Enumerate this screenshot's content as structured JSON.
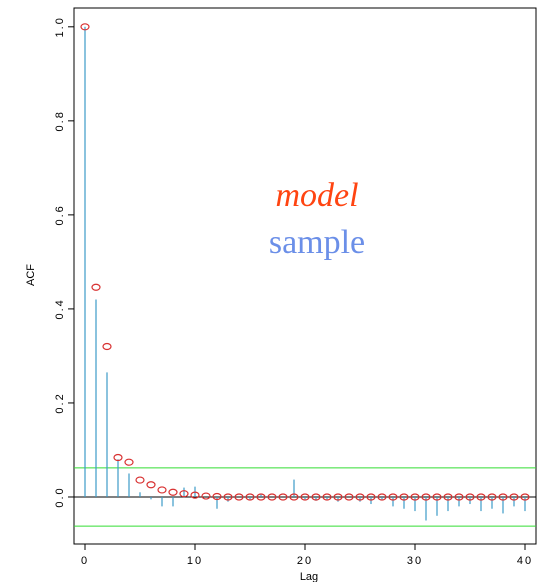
{
  "chart_data": {
    "type": "bar",
    "xlabel": "Lag",
    "ylabel": "ACF",
    "xlim": [
      -1,
      41
    ],
    "ylim": [
      -0.1,
      1.04
    ],
    "x_ticks": [
      0,
      10,
      20,
      30,
      40
    ],
    "x_tick_labels": [
      "0",
      "10",
      "20",
      "30",
      "40"
    ],
    "y_ticks": [
      0.0,
      0.2,
      0.4,
      0.6,
      0.8,
      1.0
    ],
    "y_tick_labels": [
      "0.0",
      "0.2",
      "0.4",
      "0.6",
      "0.8",
      "1.0"
    ],
    "confidence_bound": 0.062,
    "grid": false,
    "legend_placement": "center",
    "annotations": {
      "model": "model",
      "sample": "sample"
    },
    "colors": {
      "sample": "#3d9bc7",
      "model": "#d83030",
      "model_text": "#ff4411",
      "sample_text": "#6b8fe8",
      "bounds": "#33dd33",
      "zero_line": "#000000"
    },
    "series": [
      {
        "name": "sample",
        "kind": "vertical-lines",
        "x": [
          0,
          1,
          2,
          3,
          4,
          5,
          6,
          7,
          8,
          9,
          10,
          11,
          12,
          13,
          14,
          15,
          16,
          17,
          18,
          19,
          20,
          21,
          22,
          23,
          24,
          25,
          26,
          27,
          28,
          29,
          30,
          31,
          32,
          33,
          34,
          35,
          36,
          37,
          38,
          39,
          40
        ],
        "values": [
          1.0,
          0.42,
          0.265,
          0.08,
          0.05,
          0.01,
          -0.005,
          -0.02,
          -0.02,
          0.02,
          0.022,
          0.0,
          -0.025,
          -0.01,
          0.0,
          -0.005,
          0.005,
          0.0,
          0.0,
          0.037,
          -0.005,
          -0.008,
          -0.005,
          -0.01,
          0.0,
          -0.01,
          -0.015,
          -0.005,
          -0.02,
          -0.025,
          -0.03,
          -0.05,
          -0.04,
          -0.03,
          -0.02,
          -0.015,
          -0.03,
          -0.025,
          -0.035,
          -0.02,
          -0.03
        ]
      },
      {
        "name": "model",
        "kind": "circles",
        "x": [
          0,
          1,
          2,
          3,
          4,
          5,
          6,
          7,
          8,
          9,
          10,
          11,
          12,
          13,
          14,
          15,
          16,
          17,
          18,
          19,
          20,
          21,
          22,
          23,
          24,
          25,
          26,
          27,
          28,
          29,
          30,
          31,
          32,
          33,
          34,
          35,
          36,
          37,
          38,
          39,
          40
        ],
        "values": [
          1.0,
          0.446,
          0.32,
          0.084,
          0.074,
          0.036,
          0.026,
          0.015,
          0.01,
          0.007,
          0.004,
          0.002,
          0.001,
          0.0,
          0.0,
          0.0,
          0.0,
          0.0,
          0.0,
          0.0,
          0.0,
          0.0,
          0.0,
          0.0,
          0.0,
          0.0,
          0.0,
          0.0,
          0.0,
          0.0,
          0.0,
          0.0,
          0.0,
          0.0,
          0.0,
          0.0,
          0.0,
          0.0,
          0.0,
          0.0,
          0.0
        ]
      }
    ]
  }
}
